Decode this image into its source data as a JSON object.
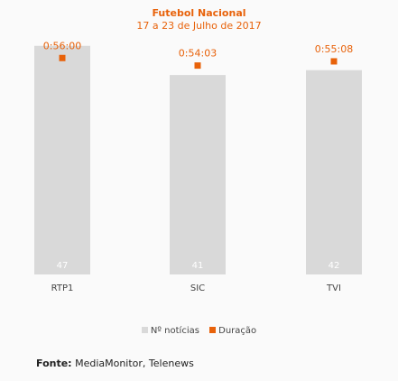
{
  "chart_data": {
    "type": "bar",
    "title": "Futebol Nacional",
    "subtitle": "17 a 23 de Julho de 2017",
    "categories": [
      "RTP1",
      "SIC",
      "TVI"
    ],
    "series": [
      {
        "name": "Nº notícias",
        "values": [
          47,
          41,
          42
        ],
        "labels": [
          "47",
          "41",
          "42"
        ],
        "color": "#d9d9d9"
      },
      {
        "name": "Duração",
        "values": [
          3360,
          3243,
          3308
        ],
        "labels": [
          "0:56:00",
          "0:54:03",
          "0:55:08"
        ],
        "color": "#e8620a",
        "axis": "secondary",
        "unit": "seconds"
      }
    ],
    "ylim": [
      0,
      49
    ],
    "ylim_secondary": [
      0,
      3700
    ],
    "grid": false,
    "legend": "bottom-center"
  },
  "source": {
    "label": "Fonte:",
    "text": "MediaMonitor, Telenews"
  },
  "colors": {
    "accent": "#e8620a",
    "bar": "#d9d9d9",
    "bar_label": "#ffffff",
    "tick_label": "#444444"
  }
}
